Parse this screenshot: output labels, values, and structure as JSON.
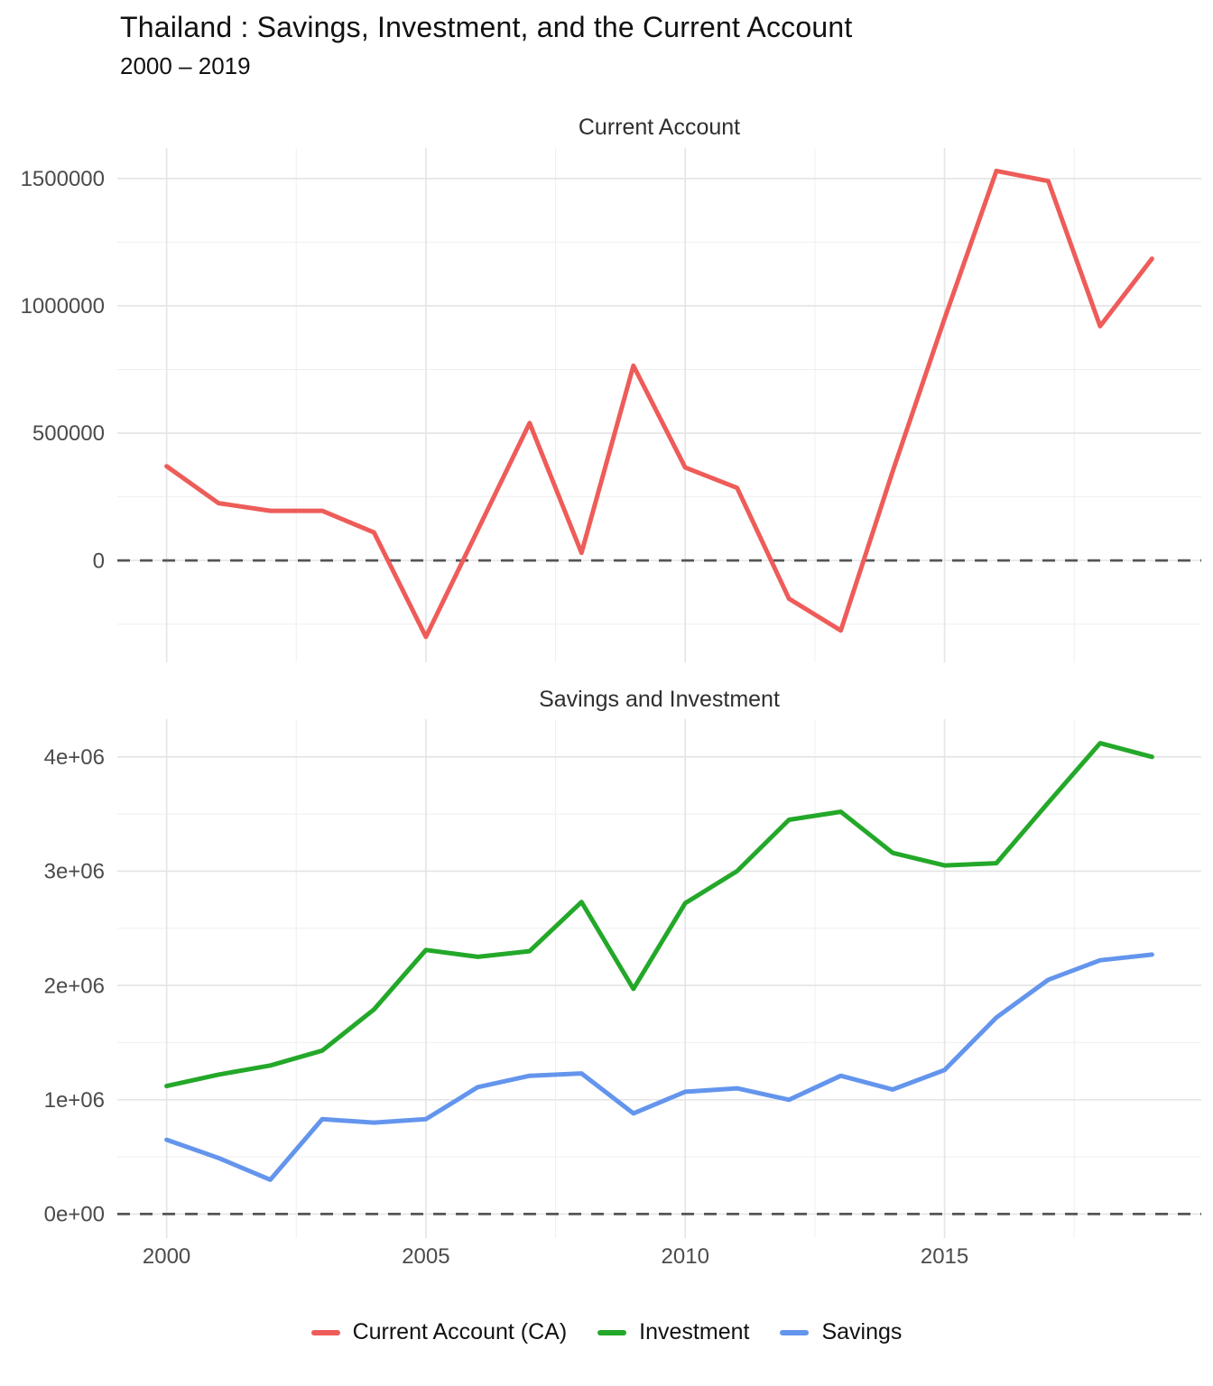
{
  "header": {
    "title": "Thailand : Savings, Investment, and the Current Account",
    "subtitle": "2000 – 2019"
  },
  "legend": {
    "position": "bottom",
    "items": [
      {
        "label": "Current Account (CA)",
        "color": "#ee5c59"
      },
      {
        "label": "Investment",
        "color": "#23a829"
      },
      {
        "label": "Savings",
        "color": "#6495ed"
      }
    ]
  },
  "style": {
    "background": "#ffffff",
    "grid_major_color": "#e4e4e4",
    "grid_minor_color": "#efefef",
    "zero_line_color": "#555555",
    "axis_text_color": "#4b4b4b"
  },
  "chart_data": [
    {
      "type": "line",
      "title": "Current Account",
      "x": [
        2000,
        2001,
        2002,
        2003,
        2004,
        2005,
        2006,
        2007,
        2008,
        2009,
        2010,
        2011,
        2012,
        2013,
        2014,
        2015,
        2016,
        2017,
        2018,
        2019
      ],
      "series": [
        {
          "name": "Current Account (CA)",
          "color": "#ee5c59",
          "values": [
            370000,
            225000,
            195000,
            195000,
            110000,
            -300000,
            120000,
            540000,
            30000,
            765000,
            365000,
            285000,
            -150000,
            -275000,
            350000,
            950000,
            1530000,
            1490000,
            920000,
            1185000
          ]
        }
      ],
      "xlim": [
        1999.05,
        2019.95
      ],
      "ylim": [
        -400000,
        1620000
      ],
      "xticks": {
        "values": [
          2000,
          2005,
          2010,
          2015
        ],
        "labels": [
          "2000",
          "2005",
          "2010",
          "2015"
        ]
      },
      "yticks": {
        "values": [
          0,
          500000,
          1000000,
          1500000
        ],
        "labels": [
          "0",
          "500000",
          "1000000",
          "1500000"
        ]
      },
      "zero_line": true,
      "grid": true,
      "show_xlabels": false,
      "legend_position": "none"
    },
    {
      "type": "line",
      "title": "Savings and Investment",
      "x": [
        2000,
        2001,
        2002,
        2003,
        2004,
        2005,
        2006,
        2007,
        2008,
        2009,
        2010,
        2011,
        2012,
        2013,
        2014,
        2015,
        2016,
        2017,
        2018,
        2019
      ],
      "series": [
        {
          "name": "Investment",
          "color": "#23a829",
          "values": [
            1120000,
            1220000,
            1300000,
            1430000,
            1790000,
            2310000,
            2250000,
            2300000,
            2730000,
            1970000,
            2720000,
            3000000,
            3450000,
            3520000,
            3160000,
            3050000,
            3070000,
            3600000,
            4120000,
            4000000
          ]
        },
        {
          "name": "Savings",
          "color": "#6495ed",
          "values": [
            650000,
            490000,
            300000,
            830000,
            800000,
            830000,
            1110000,
            1210000,
            1230000,
            880000,
            1070000,
            1100000,
            1000000,
            1210000,
            1090000,
            1260000,
            1720000,
            2050000,
            2220000,
            2270000
          ]
        }
      ],
      "xlim": [
        1999.05,
        2019.95
      ],
      "ylim": [
        -210000,
        4330000
      ],
      "xticks": {
        "values": [
          2000,
          2005,
          2010,
          2015
        ],
        "labels": [
          "2000",
          "2005",
          "2010",
          "2015"
        ]
      },
      "yticks": {
        "values": [
          0,
          1000000,
          2000000,
          3000000,
          4000000
        ],
        "labels": [
          "0e+00",
          "1e+06",
          "2e+06",
          "3e+06",
          "4e+06"
        ]
      },
      "zero_line": true,
      "grid": true,
      "show_xlabels": true,
      "legend_position": "none"
    }
  ]
}
